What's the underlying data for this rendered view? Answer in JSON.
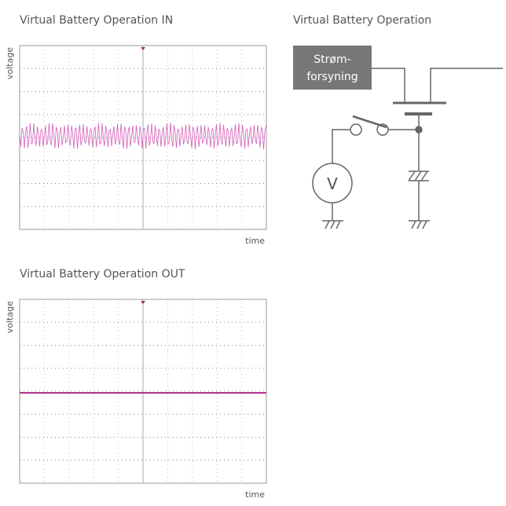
{
  "panels": [
    {
      "title": "Virtual Battery Operation IN",
      "y_label": "voltage",
      "x_label": "time"
    },
    {
      "title": "Virtual Battery Operation OUT",
      "y_label": "voltage",
      "x_label": "time"
    }
  ],
  "circuit": {
    "title": "Virtual Battery Operation",
    "supply_label": [
      "Strøm-",
      "forsyning"
    ],
    "meter_label": "V"
  }
}
